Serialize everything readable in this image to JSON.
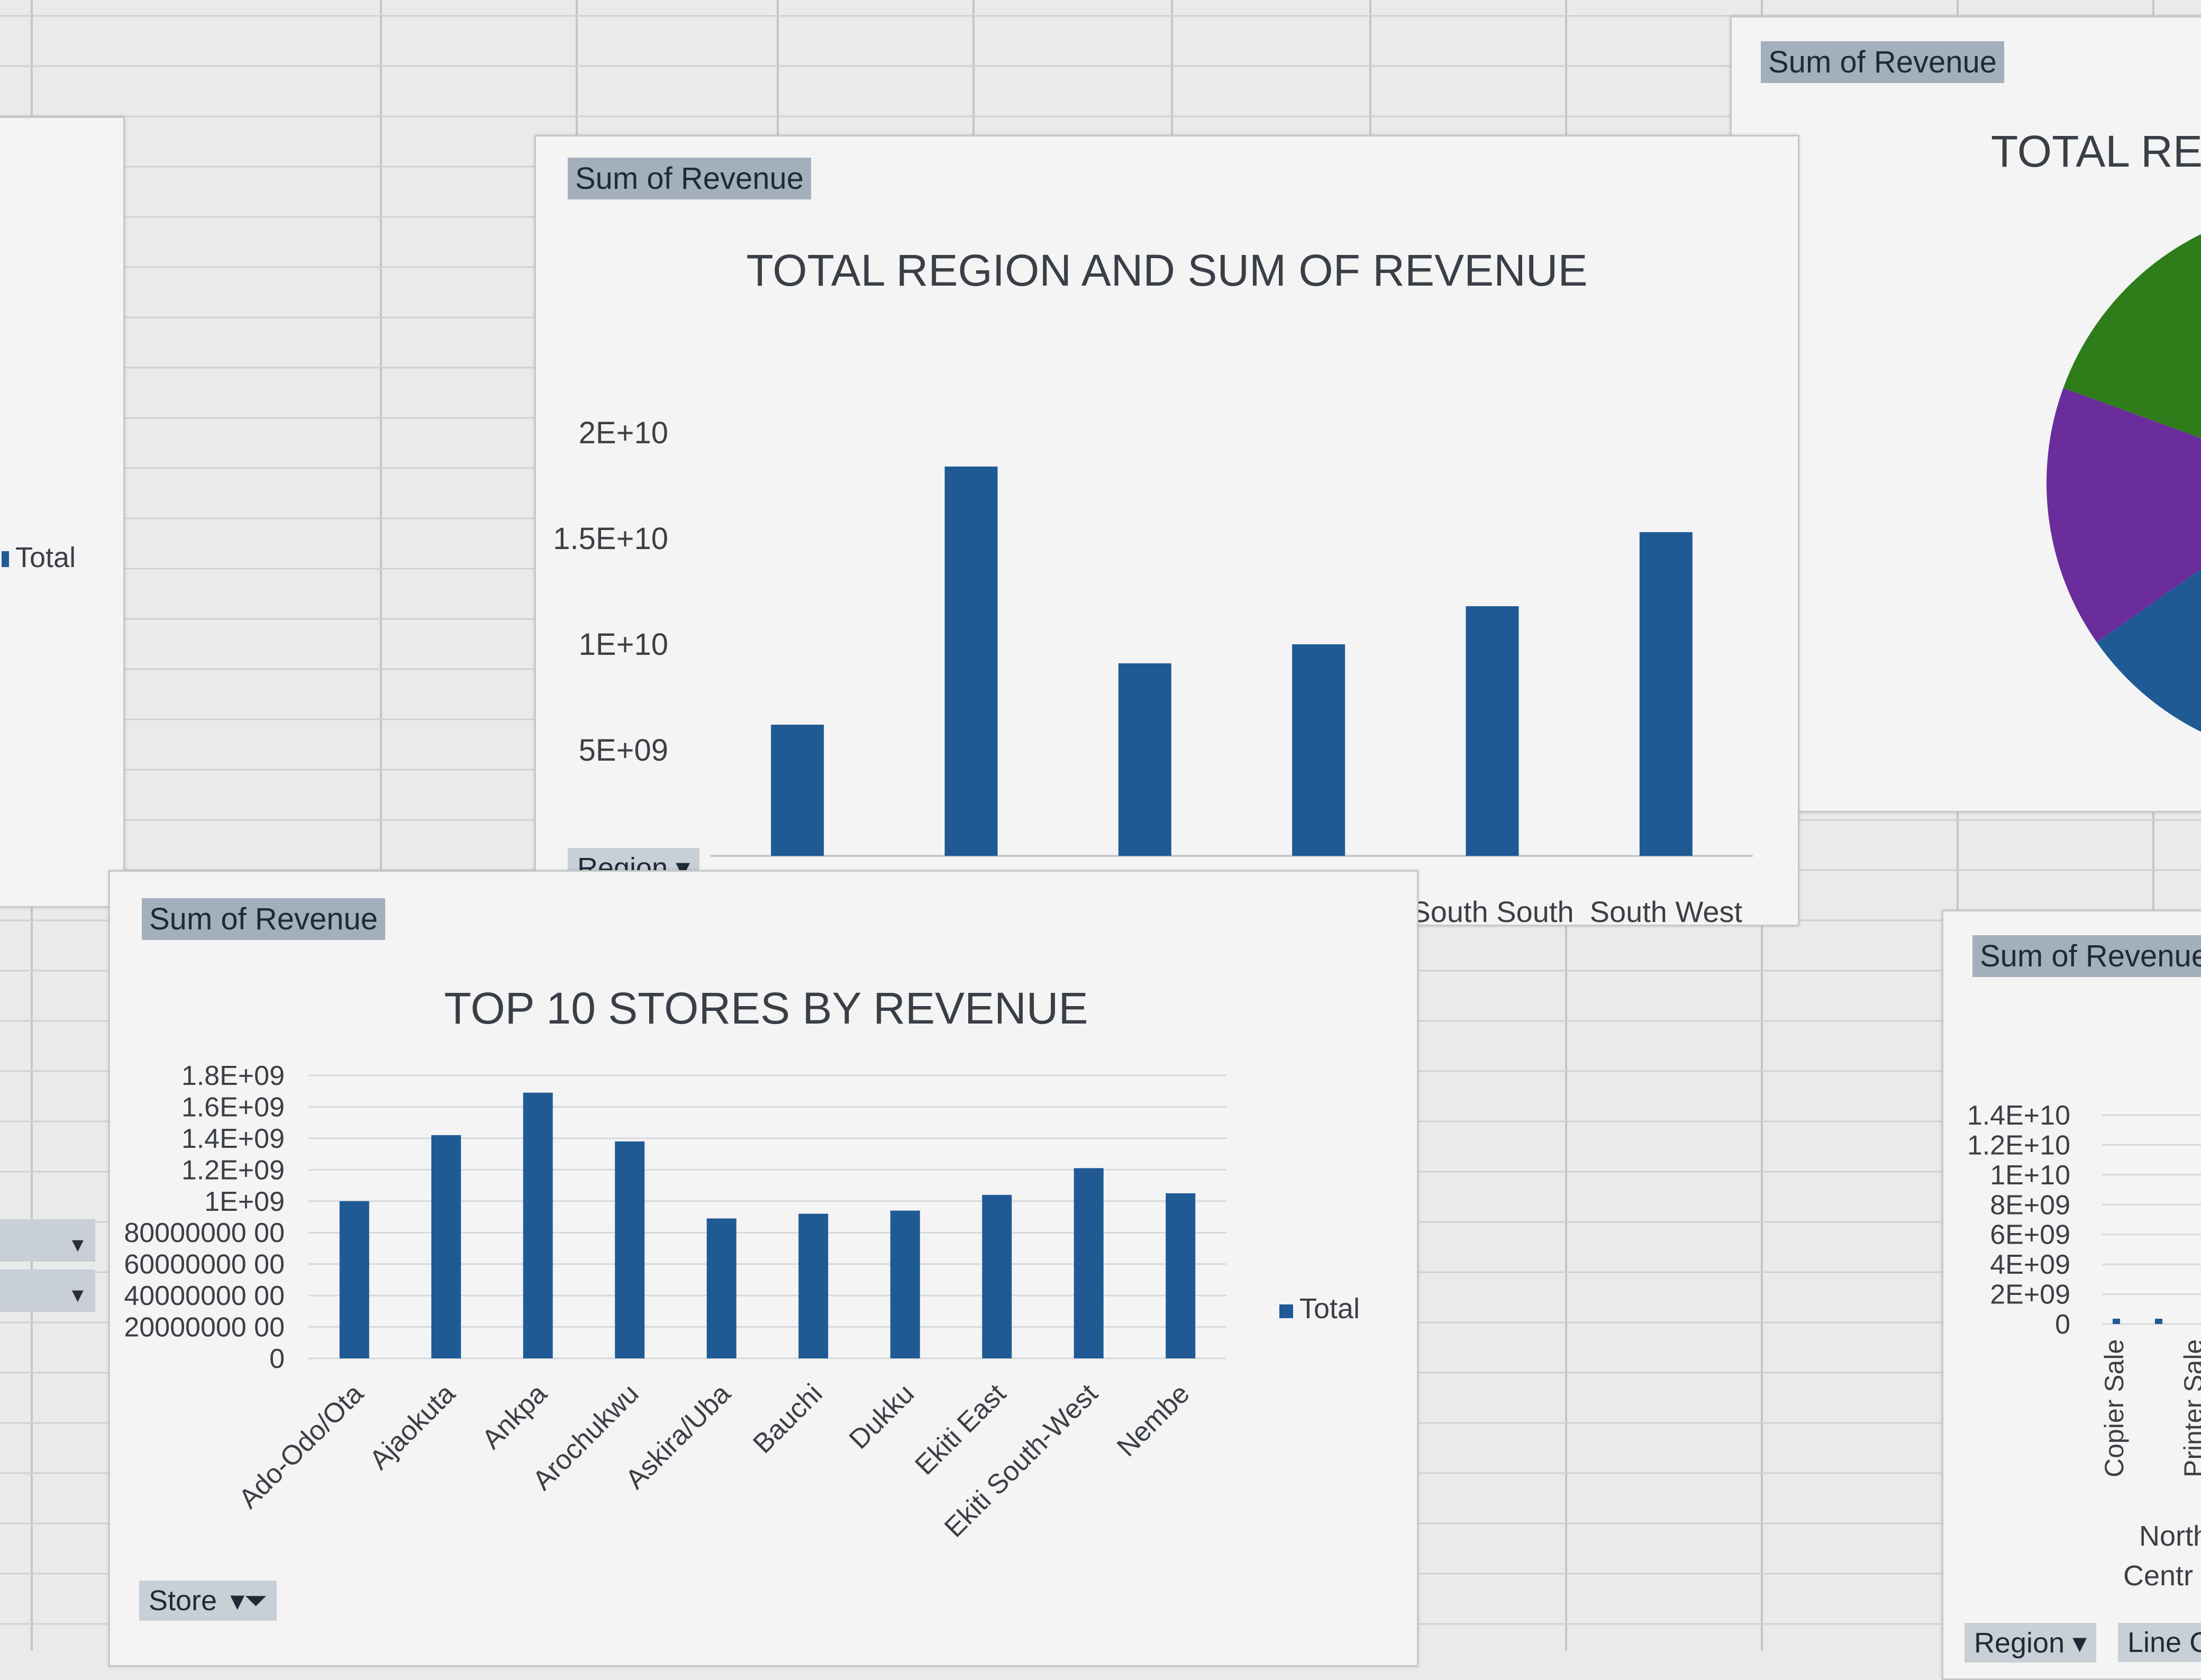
{
  "theme": {
    "bar_color": "#1f5a95",
    "field_button_bg": "#a4afbd",
    "pie_green": "#2e7d1a",
    "pie_purple": "#6b2d9c",
    "pie_blue": "#1f5a95"
  },
  "left_partial": {
    "legend_label": "Total"
  },
  "region_chart": {
    "field_button": "Sum of Revenue",
    "title": "TOTAL REGION AND SUM OF REVENUE",
    "filter_button": "Region",
    "chart_data": {
      "type": "bar",
      "categories": [
        "",
        "",
        "",
        "",
        "South South",
        "South West"
      ],
      "values": [
        6200000000,
        18400000000,
        9100000000,
        10000000000,
        11800000000,
        15300000000
      ],
      "ylim": [
        0,
        20000000000
      ],
      "yticks": [
        "0",
        "5E+09",
        "1E+10",
        "1.5E+10",
        "2E+10"
      ],
      "grid": false
    }
  },
  "stores_chart": {
    "field_button": "Sum of Revenue",
    "title": "TOP 10 STORES BY REVENUE",
    "legend_label": "Total",
    "filter_button": "Store",
    "chart_data": {
      "type": "bar",
      "categories": [
        "Ado-Odo/Ota",
        "Ajaokuta",
        "Ankpa",
        "Arochukwu",
        "Askira/Uba",
        "Bauchi",
        "Dukku",
        "Ekiti East",
        "Ekiti South-West",
        "Nembe"
      ],
      "values": [
        1000000000,
        1420000000,
        1690000000,
        1380000000,
        890000000,
        920000000,
        940000000,
        1040000000,
        1210000000,
        1050000000
      ],
      "ylim": [
        0,
        1800000000
      ],
      "yticks": [
        "0",
        "20000000 00",
        "40000000 00",
        "60000000 00",
        "80000000 00",
        "1E+09",
        "1.2E+09",
        "1.4E+09",
        "1.6E+09",
        "1.8E+09"
      ],
      "grid": true
    }
  },
  "pie_chart": {
    "field_button": "Sum of Revenue",
    "title": "TOTAL REG"
  },
  "line_chart": {
    "field_button": "Sum of Revenue",
    "yticks": [
      "0",
      "2E+09",
      "4E+09",
      "6E+09",
      "8E+09",
      "1E+10",
      "1.2E+10",
      "1.4E+10"
    ],
    "x_labels": [
      "Copier Sale",
      "Printer Sale"
    ],
    "group_labels": [
      "North",
      "Centr"
    ],
    "region_button": "Region",
    "line_button": "Line C"
  }
}
